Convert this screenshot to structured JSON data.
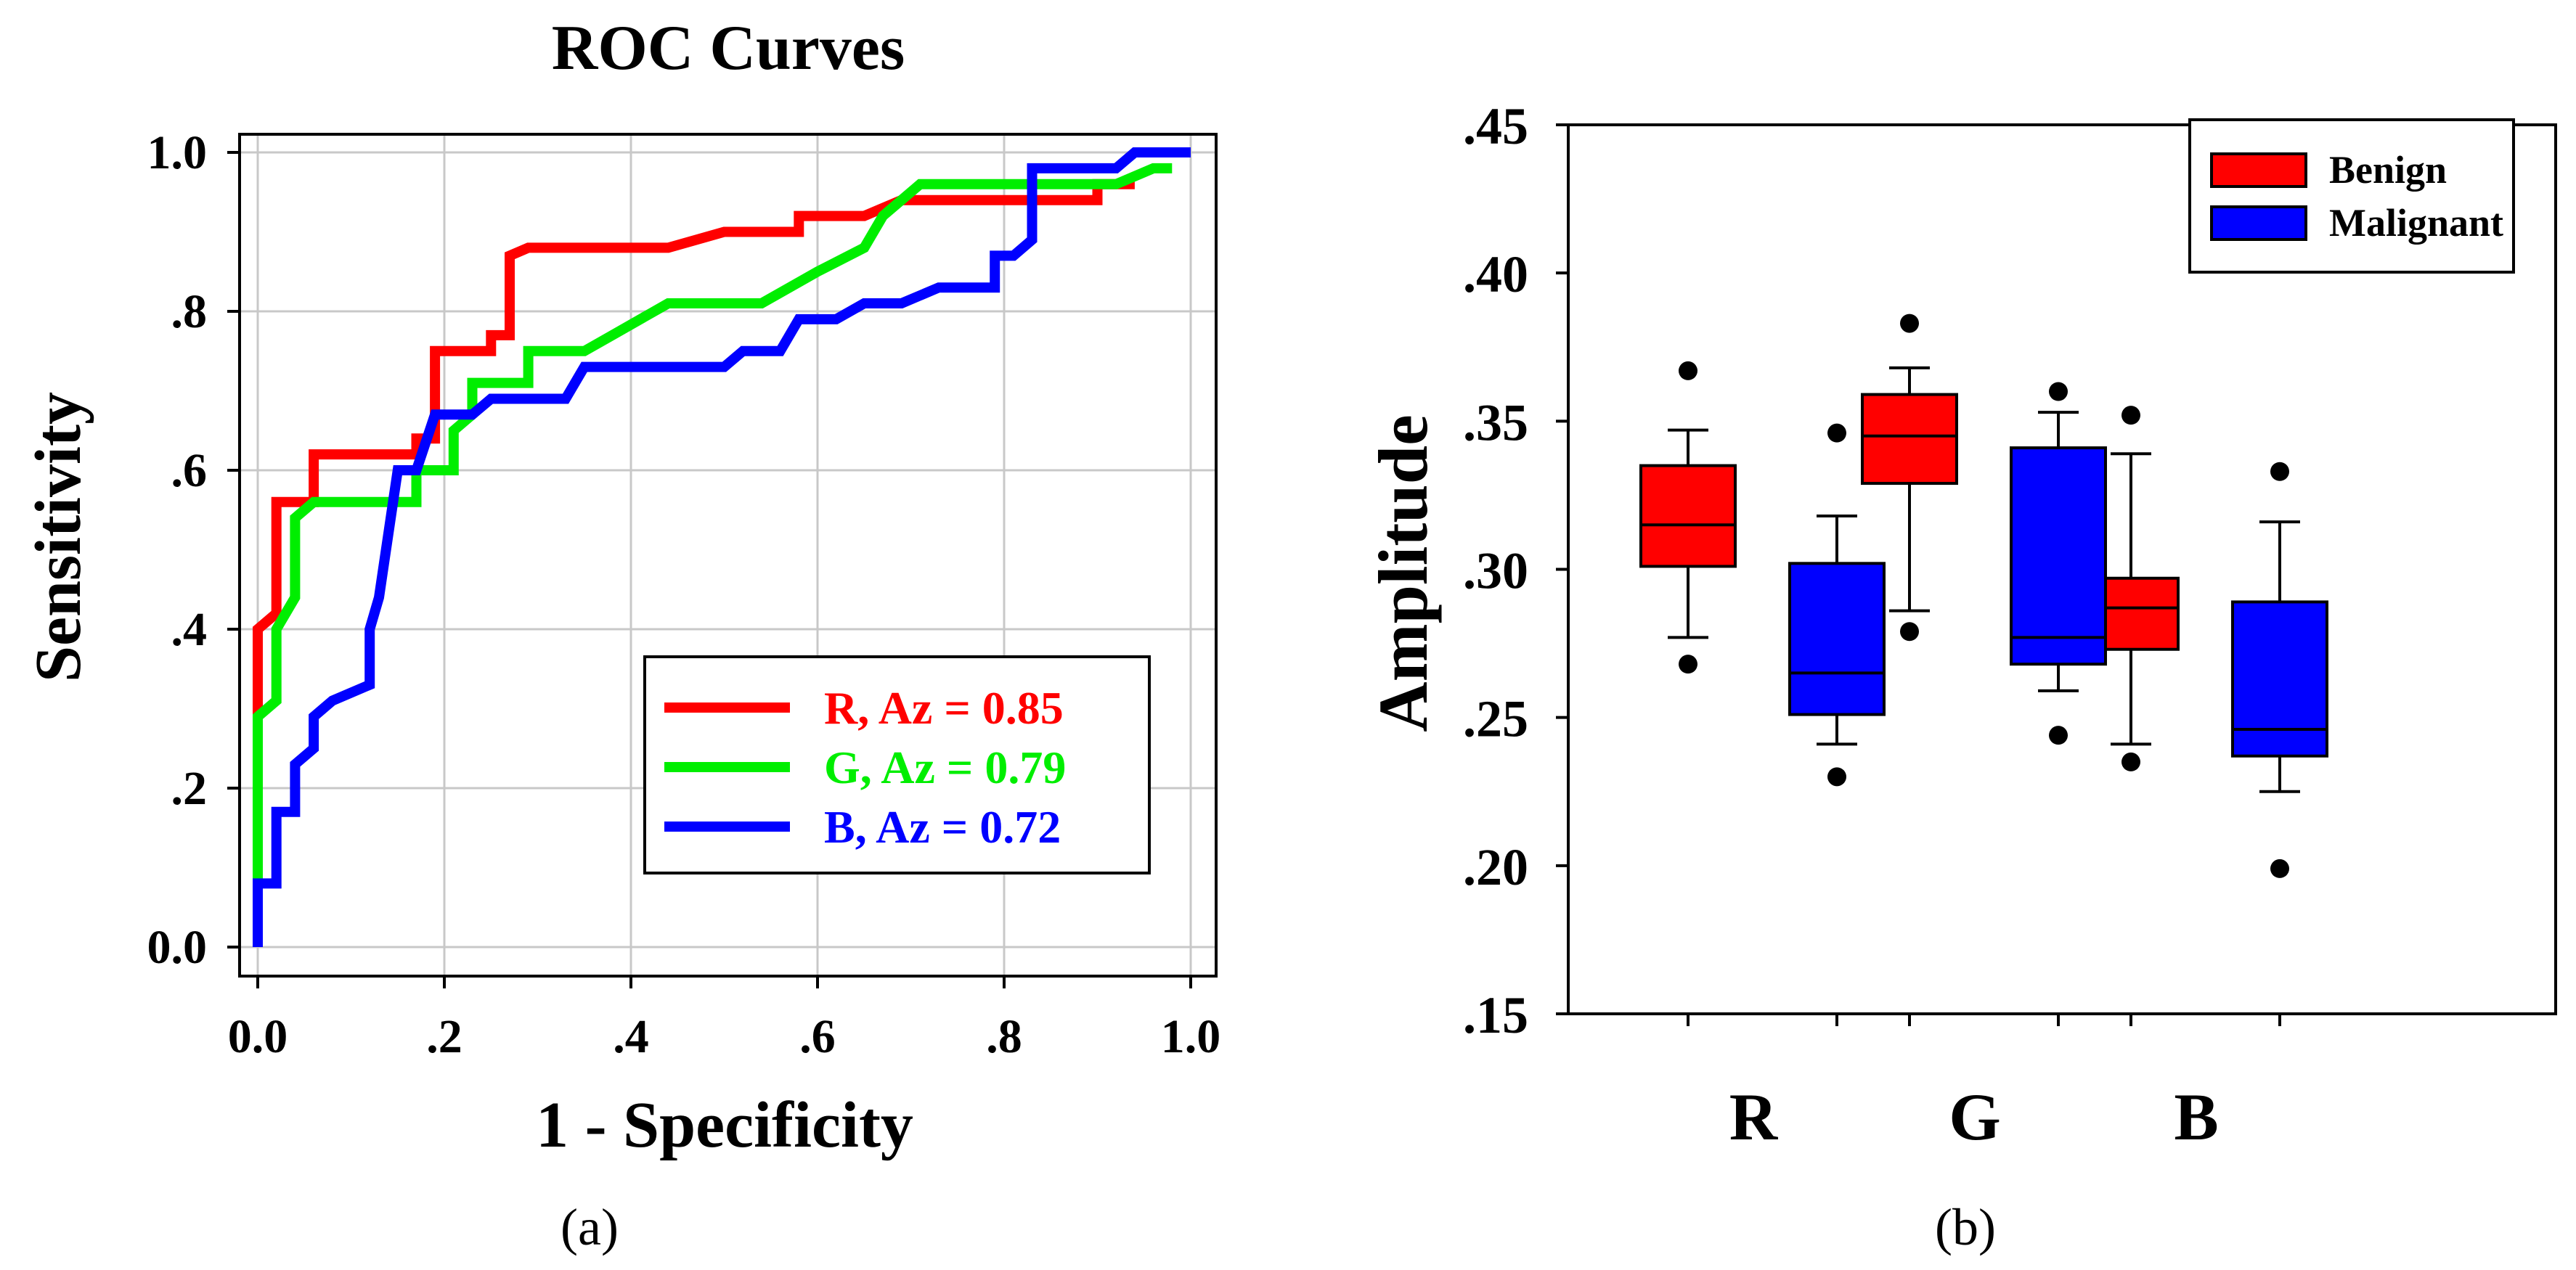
{
  "figure": {
    "caption_a": "(a)",
    "caption_b": "(b)"
  },
  "chart_data": [
    {
      "type": "line",
      "title": "ROC Curves",
      "xlabel": "1 - Specificity",
      "ylabel": "Sensitivity",
      "xlim": [
        0,
        1
      ],
      "ylim": [
        0,
        1
      ],
      "grid": true,
      "legend_position": "bottom-right",
      "x_tick_labels": [
        "0.0",
        ".2",
        ".4",
        ".6",
        ".8",
        "1.0"
      ],
      "y_tick_labels": [
        "0.0",
        ".2",
        ".4",
        ".6",
        ".8",
        "1.0"
      ],
      "series": [
        {
          "name": "R",
          "label": "R, Az = 0.85",
          "color": "#ff0000",
          "points": [
            [
              0,
              0.08
            ],
            [
              0,
              0.4
            ],
            [
              0.02,
              0.42
            ],
            [
              0.02,
              0.56
            ],
            [
              0.06,
              0.56
            ],
            [
              0.06,
              0.62
            ],
            [
              0.17,
              0.62
            ],
            [
              0.17,
              0.64
            ],
            [
              0.19,
              0.64
            ],
            [
              0.19,
              0.75
            ],
            [
              0.25,
              0.75
            ],
            [
              0.25,
              0.77
            ],
            [
              0.27,
              0.77
            ],
            [
              0.27,
              0.87
            ],
            [
              0.29,
              0.88
            ],
            [
              0.44,
              0.88
            ],
            [
              0.5,
              0.9
            ],
            [
              0.58,
              0.9
            ],
            [
              0.58,
              0.92
            ],
            [
              0.65,
              0.92
            ],
            [
              0.69,
              0.94
            ],
            [
              0.9,
              0.94
            ],
            [
              0.9,
              0.96
            ],
            [
              0.94,
              0.96
            ]
          ]
        },
        {
          "name": "G",
          "label": "G, Az = 0.79",
          "color": "#00ee00",
          "points": [
            [
              0,
              0.08
            ],
            [
              0,
              0.29
            ],
            [
              0.02,
              0.31
            ],
            [
              0.02,
              0.4
            ],
            [
              0.04,
              0.44
            ],
            [
              0.04,
              0.54
            ],
            [
              0.06,
              0.56
            ],
            [
              0.17,
              0.56
            ],
            [
              0.17,
              0.6
            ],
            [
              0.21,
              0.6
            ],
            [
              0.21,
              0.65
            ],
            [
              0.23,
              0.67
            ],
            [
              0.23,
              0.71
            ],
            [
              0.29,
              0.71
            ],
            [
              0.29,
              0.75
            ],
            [
              0.35,
              0.75
            ],
            [
              0.38,
              0.77
            ],
            [
              0.44,
              0.81
            ],
            [
              0.54,
              0.81
            ],
            [
              0.6,
              0.85
            ],
            [
              0.65,
              0.88
            ],
            [
              0.67,
              0.92
            ],
            [
              0.71,
              0.96
            ],
            [
              0.92,
              0.96
            ],
            [
              0.96,
              0.98
            ],
            [
              0.98,
              0.98
            ]
          ]
        },
        {
          "name": "B",
          "label": "B, Az = 0.72",
          "color": "#0000ff",
          "points": [
            [
              0,
              0
            ],
            [
              0,
              0.08
            ],
            [
              0.02,
              0.08
            ],
            [
              0.02,
              0.17
            ],
            [
              0.04,
              0.17
            ],
            [
              0.04,
              0.23
            ],
            [
              0.06,
              0.25
            ],
            [
              0.06,
              0.29
            ],
            [
              0.08,
              0.31
            ],
            [
              0.12,
              0.33
            ],
            [
              0.12,
              0.4
            ],
            [
              0.13,
              0.44
            ],
            [
              0.15,
              0.6
            ],
            [
              0.17,
              0.6
            ],
            [
              0.19,
              0.67
            ],
            [
              0.23,
              0.67
            ],
            [
              0.25,
              0.69
            ],
            [
              0.33,
              0.69
            ],
            [
              0.35,
              0.73
            ],
            [
              0.5,
              0.73
            ],
            [
              0.52,
              0.75
            ],
            [
              0.56,
              0.75
            ],
            [
              0.58,
              0.79
            ],
            [
              0.62,
              0.79
            ],
            [
              0.65,
              0.81
            ],
            [
              0.69,
              0.81
            ],
            [
              0.73,
              0.83
            ],
            [
              0.79,
              0.83
            ],
            [
              0.79,
              0.87
            ],
            [
              0.81,
              0.87
            ],
            [
              0.83,
              0.89
            ],
            [
              0.83,
              0.98
            ],
            [
              0.92,
              0.98
            ],
            [
              0.94,
              1.0
            ],
            [
              1.0,
              1.0
            ]
          ]
        }
      ]
    },
    {
      "type": "box",
      "title": "",
      "ylabel": "Amplitude",
      "xlabel": "",
      "ylim": [
        0.15,
        0.45
      ],
      "grid": false,
      "legend_position": "top-right",
      "y_tick_labels": [
        ".15",
        ".20",
        ".25",
        ".30",
        ".35",
        ".40",
        ".45"
      ],
      "categories": [
        "R",
        "G",
        "B"
      ],
      "series": [
        {
          "name": "Benign",
          "color": "#ff0000",
          "boxes": [
            {
              "category": "R",
              "q1": 0.301,
              "median": 0.315,
              "q3": 0.335,
              "whisker_low": 0.277,
              "whisker_high": 0.347,
              "outliers": [
                0.268,
                0.367
              ]
            },
            {
              "category": "G",
              "q1": 0.329,
              "median": 0.345,
              "q3": 0.359,
              "whisker_low": 0.286,
              "whisker_high": 0.368,
              "outliers": [
                0.279,
                0.383
              ]
            },
            {
              "category": "B",
              "q1": 0.273,
              "median": 0.287,
              "q3": 0.297,
              "whisker_low": 0.241,
              "whisker_high": 0.339,
              "outliers": [
                0.235,
                0.352
              ]
            }
          ]
        },
        {
          "name": "Malignant",
          "color": "#0000ff",
          "boxes": [
            {
              "category": "R",
              "q1": 0.251,
              "median": 0.265,
              "q3": 0.302,
              "whisker_low": 0.241,
              "whisker_high": 0.318,
              "outliers": [
                0.23,
                0.346
              ]
            },
            {
              "category": "G",
              "q1": 0.268,
              "median": 0.277,
              "q3": 0.341,
              "whisker_low": 0.259,
              "whisker_high": 0.353,
              "outliers": [
                0.244,
                0.36
              ]
            },
            {
              "category": "B",
              "q1": 0.237,
              "median": 0.246,
              "q3": 0.289,
              "whisker_low": 0.225,
              "whisker_high": 0.316,
              "outliers": [
                0.199,
                0.333
              ]
            }
          ]
        }
      ]
    }
  ]
}
